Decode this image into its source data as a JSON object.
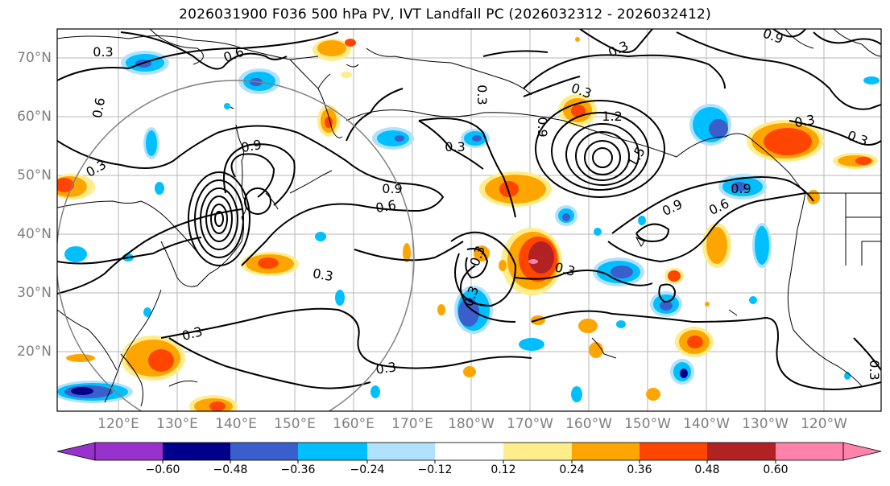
{
  "title": "2026031900 F036 500 hPa PV, IVT Landfall PC (2026032312 - 2026032412)",
  "lat_labels": [
    "70°N",
    "60°N",
    "50°N",
    "40°N",
    "30°N",
    "20°N"
  ],
  "lon_labels": [
    "120°E",
    "130°E",
    "140°E",
    "150°E",
    "160°E",
    "170°E",
    "180°W",
    "170°W",
    "160°W",
    "150°W",
    "140°W",
    "130°W",
    "120°W"
  ],
  "contour_labels": [
    "0.3",
    "0.6",
    "0.9",
    "1.2",
    "1.5"
  ],
  "colorbar": {
    "tick_labels": [
      "−0.60",
      "−0.48",
      "−0.36",
      "−0.24",
      "−0.12",
      "0.12",
      "0.24",
      "0.36",
      "0.48",
      "0.60"
    ],
    "colors": [
      "#9932cc",
      "#00008b",
      "#3a5fcd",
      "#00bfff",
      "#b0e2ff",
      "#ffffff",
      "#ffec8b",
      "#ffa500",
      "#ff4500",
      "#b22222",
      "#ff82ab"
    ]
  },
  "colors": {
    "pos_light": "#ffec8b",
    "pos_orange": "#ffa500",
    "pos_red": "#ff4500",
    "pos_dark": "#b22222",
    "pos_pink": "#ff82ab",
    "neg_light": "#b0e2ff",
    "neg_cyan": "#00bfff",
    "neg_blue": "#3a5fcd",
    "neg_navy": "#00008b"
  }
}
